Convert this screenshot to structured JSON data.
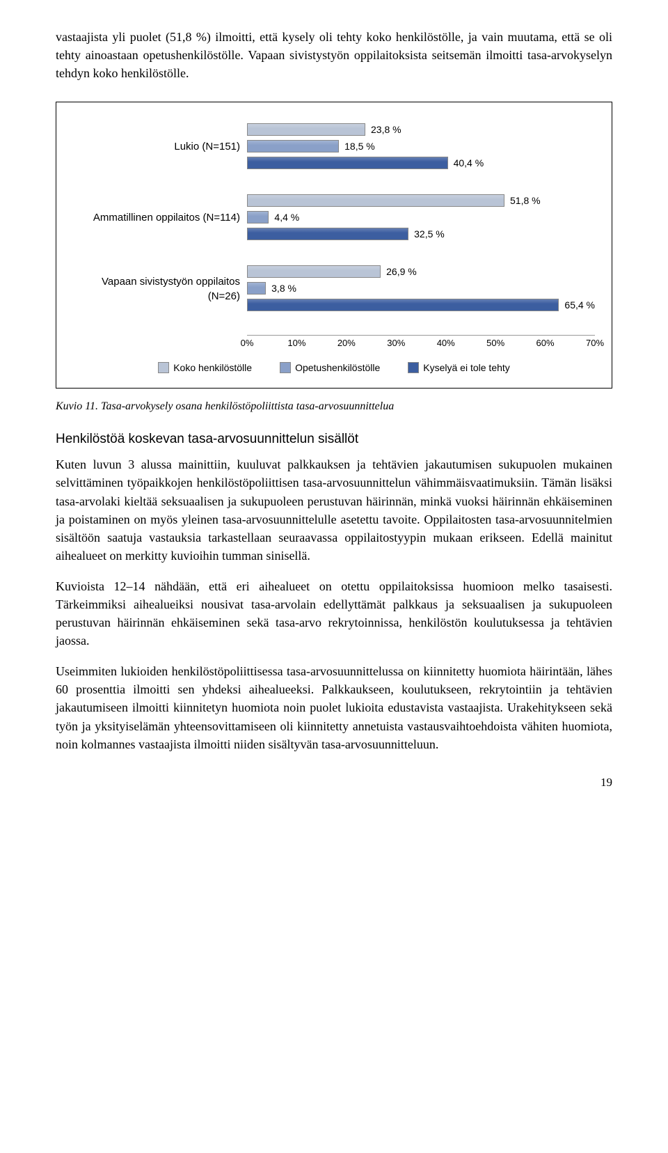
{
  "intro_p1": "vastaajista yli puolet (51,8 %) ilmoitti, että kysely oli tehty koko henkilöstölle, ja vain muutama, että se oli tehty ainoastaan opetushenkilöstölle. Vapaan sivistystyön oppilaitoksista seitsemän ilmoitti tasa-arvokyselyn tehdyn koko henkilöstölle.",
  "chart": {
    "type": "bar",
    "orientation": "horizontal",
    "xmax_pct": 70,
    "ticks": [
      "0%",
      "10%",
      "20%",
      "30%",
      "40%",
      "50%",
      "60%",
      "70%"
    ],
    "series_colors": {
      "koko": "#b9c4d6",
      "opetus": "#8aa0c8",
      "ei": "#3c5ea0"
    },
    "border_color": "#888888",
    "categories": [
      {
        "label": "Lukio (N=151)",
        "bars": [
          {
            "series": "koko",
            "value": 23.8,
            "text": "23,8 %"
          },
          {
            "series": "opetus",
            "value": 18.5,
            "text": "18,5 %"
          },
          {
            "series": "ei",
            "value": 40.4,
            "text": "40,4 %"
          }
        ]
      },
      {
        "label": "Ammatillinen oppilaitos (N=114)",
        "bars": [
          {
            "series": "koko",
            "value": 51.8,
            "text": "51,8 %"
          },
          {
            "series": "opetus",
            "value": 4.4,
            "text": "4,4 %"
          },
          {
            "series": "ei",
            "value": 32.5,
            "text": "32,5 %"
          }
        ]
      },
      {
        "label": "Vapaan sivistystyön oppilaitos (N=26)",
        "bars": [
          {
            "series": "koko",
            "value": 26.9,
            "text": "26,9 %"
          },
          {
            "series": "opetus",
            "value": 3.8,
            "text": "3,8 %"
          },
          {
            "series": "ei",
            "value": 65.4,
            "text": "65,4 %"
          }
        ]
      }
    ],
    "legend": [
      {
        "series": "koko",
        "label": "Koko henkilöstölle"
      },
      {
        "series": "opetus",
        "label": "Opetushenkilöstölle"
      },
      {
        "series": "ei",
        "label": "Kyselyä ei tole tehty"
      }
    ]
  },
  "caption_prefix": "Kuvio 11.",
  "caption_text": "Tasa-arvokysely osana henkilöstöpoliittista tasa-arvosuunnittelua",
  "subheading": "Henkilöstöä koskevan tasa-arvosuunnittelun sisällöt",
  "p2": "Kuten luvun 3 alussa mainittiin, kuuluvat palkkauksen ja tehtävien jakautumisen sukupuolen mukainen selvittäminen työpaikkojen henkilöstöpoliittisen tasa-arvosuunnittelun vähimmäisvaatimuksiin. Tämän lisäksi tasa-arvolaki kieltää seksuaalisen ja sukupuoleen perustuvan häirinnän, minkä vuoksi häirinnän ehkäiseminen ja poistaminen on myös yleinen tasa-arvosuunnittelulle asetettu tavoite. Oppilaitosten tasa-arvosuunnitelmien sisältöön saatuja vastauksia tarkastellaan seuraavassa oppilaitostyypin mukaan erikseen. Edellä mainitut aihealueet on merkitty kuvioihin tumman sinisellä.",
  "p3": "Kuvioista 12–14 nähdään, että eri aihealueet on otettu oppilaitoksissa huomioon melko tasaisesti. Tärkeimmiksi aihealueiksi nousivat tasa-arvolain edellyttämät palkkaus ja seksuaalisen ja sukupuoleen perustuvan häirinnän ehkäiseminen sekä tasa-arvo rekrytoinnissa, henkilöstön koulutuksessa ja tehtävien jaossa.",
  "p4": "Useimmiten lukioiden henkilöstöpoliittisessa tasa-arvosuunnittelussa on kiinnitetty huomiota häirintään, lähes 60 prosenttia ilmoitti sen yhdeksi aihealueeksi. Palkkaukseen, koulutukseen, rekrytointiin ja tehtävien jakautumiseen ilmoitti kiinnitetyn huomiota noin puolet lukioita edustavista vastaajista. Urakehitykseen sekä työn ja yksityiselämän yhteensovittamiseen oli kiinnitetty annetuista vastausvaihtoehdoista vähiten huomiota, noin kolmannes vastaajista ilmoitti niiden sisältyvän tasa-arvosuunnitteluun.",
  "page_number": "19"
}
